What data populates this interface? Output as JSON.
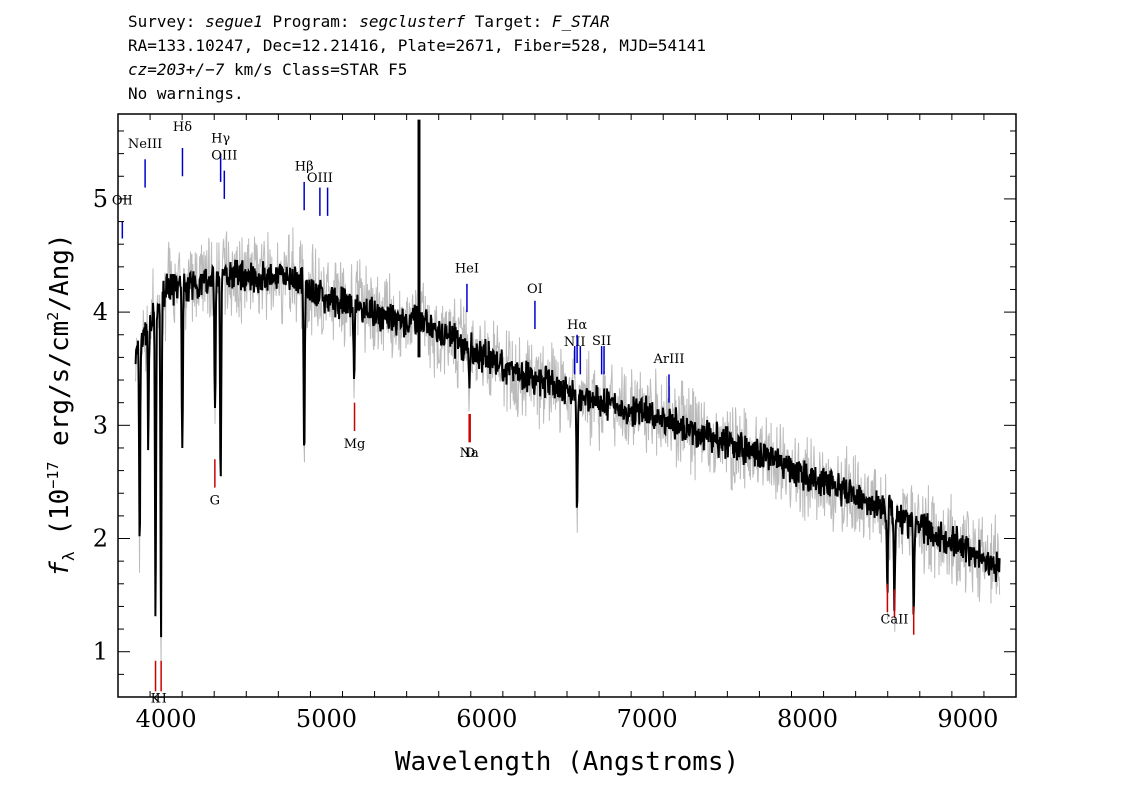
{
  "header": {
    "line1": {
      "p1": "Survey: ",
      "survey": "segue1",
      "p2": " Program: ",
      "program": "segclusterf",
      "p3": " Target: ",
      "target": "F_STAR"
    },
    "line2": "RA=133.10247, Dec=12.21416, Plate=2671, Fiber=528, MJD=54141",
    "line3": {
      "cz": "cz=203+/−7",
      "rest": " km/s Class=STAR F5"
    },
    "line4": "No warnings."
  },
  "chart_data": {
    "type": "line",
    "xlabel": "Wavelength (Angstroms)",
    "ylabel": {
      "f": "f",
      "sub": "λ",
      "main": " (10",
      "exp": "−17",
      "units": " erg/s/cm",
      "exp2": "2",
      "end": "/Ang)"
    },
    "xlim": [
      3700,
      9300
    ],
    "ylim": [
      0.6,
      5.75
    ],
    "xticks": [
      4000,
      5000,
      6000,
      7000,
      8000,
      9000
    ],
    "yticks": [
      1,
      2,
      3,
      4,
      5
    ],
    "series_colors": {
      "flux": "#000000",
      "error": "#bbbbbb"
    },
    "emission_color": "#0000cc",
    "absorption_color": "#cc0000",
    "continuum": [
      [
        3810,
        3.6
      ],
      [
        3900,
        3.9
      ],
      [
        4000,
        4.2
      ],
      [
        4200,
        4.25
      ],
      [
        4400,
        4.35
      ],
      [
        4600,
        4.3
      ],
      [
        4800,
        4.3
      ],
      [
        5000,
        4.1
      ],
      [
        5200,
        4.05
      ],
      [
        5400,
        3.95
      ],
      [
        5600,
        3.9
      ],
      [
        5800,
        3.75
      ],
      [
        6000,
        3.6
      ],
      [
        6200,
        3.45
      ],
      [
        6400,
        3.35
      ],
      [
        6600,
        3.25
      ],
      [
        7000,
        3.1
      ],
      [
        7500,
        2.85
      ],
      [
        8000,
        2.55
      ],
      [
        8500,
        2.25
      ],
      [
        9000,
        1.9
      ],
      [
        9200,
        1.75
      ]
    ],
    "absorption_features": [
      [
        3835,
        1.9
      ],
      [
        3889,
        2.9
      ],
      [
        3934,
        1.3
      ],
      [
        3968,
        1.15
      ],
      [
        4101,
        2.9
      ],
      [
        4305,
        3.1
      ],
      [
        4340,
        2.6
      ],
      [
        4861,
        2.75
      ],
      [
        5173,
        3.4
      ],
      [
        5891,
        3.3
      ],
      [
        6563,
        2.25
      ],
      [
        8498,
        1.6
      ],
      [
        8542,
        1.4
      ],
      [
        8662,
        1.4
      ]
    ],
    "emission_spike": {
      "x": 5577,
      "y": 5.7
    },
    "emission_lines": [
      {
        "label": "OII",
        "x": 3727,
        "y1": 4.65,
        "y2": 4.8,
        "ly": 4.95
      },
      {
        "label": "NeIII",
        "x": 3869,
        "y1": 5.1,
        "y2": 5.35,
        "ly": 5.45
      },
      {
        "label": "Hδ",
        "x": 4102,
        "y1": 5.2,
        "y2": 5.45,
        "ly": 5.6
      },
      {
        "label": "Hγ",
        "x": 4340,
        "y1": 5.15,
        "y2": 5.4,
        "ly": 5.5
      },
      {
        "label": "OIII",
        "x": 4363,
        "y1": 5.0,
        "y2": 5.25,
        "ly": 5.35
      },
      {
        "label": "Hβ",
        "x": 4861,
        "y1": 4.9,
        "y2": 5.15,
        "ly": 5.25
      },
      {
        "label": "OIII",
        "x": 4959,
        "y1": 4.85,
        "y2": 5.1,
        "ly": 5.15
      },
      {
        "label": "OIII",
        "x": 5007,
        "y1": 4.85,
        "y2": 5.1
      },
      {
        "label": "HeI",
        "x": 5876,
        "y1": 4.0,
        "y2": 4.25,
        "ly": 4.35
      },
      {
        "label": "OI",
        "x": 6300,
        "y1": 3.85,
        "y2": 4.1,
        "ly": 4.17
      },
      {
        "label": "NII",
        "x": 6548,
        "y1": 3.45,
        "y2": 3.7,
        "ly": 3.7
      },
      {
        "label": "Hα",
        "x": 6563,
        "y1": 3.55,
        "y2": 3.8,
        "ly": 3.85
      },
      {
        "label": "NII",
        "x": 6583,
        "y1": 3.45,
        "y2": 3.7
      },
      {
        "label": "SII",
        "x": 6716,
        "y1": 3.45,
        "y2": 3.7,
        "ly": 3.71
      },
      {
        "label": "SII",
        "x": 6731,
        "y1": 3.45,
        "y2": 3.7
      },
      {
        "label": "ArIII",
        "x": 7136,
        "y1": 3.2,
        "y2": 3.45,
        "ly": 3.55
      }
    ],
    "absorption_lines": [
      {
        "label": "K",
        "x": 3934,
        "y1": 0.65,
        "y2": 0.92,
        "ly": 0.55
      },
      {
        "label": "H",
        "x": 3969,
        "y1": 0.65,
        "y2": 0.92,
        "ly": 0.55
      },
      {
        "label": "G",
        "x": 4304,
        "y1": 2.45,
        "y2": 2.7,
        "ly": 2.3
      },
      {
        "label": "Mg",
        "x": 5175,
        "y1": 2.95,
        "y2": 3.2,
        "ly": 2.8
      },
      {
        "label": "Na",
        "x": 5890,
        "y1": 2.85,
        "y2": 3.1,
        "ly": 2.72
      },
      {
        "label": "D",
        "x": 5896,
        "y1": 2.85,
        "y2": 3.1,
        "ly": 2.72
      },
      {
        "label": "CaII",
        "x": 8498,
        "y1": 1.35,
        "y2": 1.6
      },
      {
        "label": "CaII",
        "x": 8542,
        "y1": 1.3,
        "y2": 1.55,
        "ly": 1.25
      },
      {
        "label": "CaII",
        "x": 8662,
        "y1": 1.15,
        "y2": 1.4
      }
    ]
  }
}
